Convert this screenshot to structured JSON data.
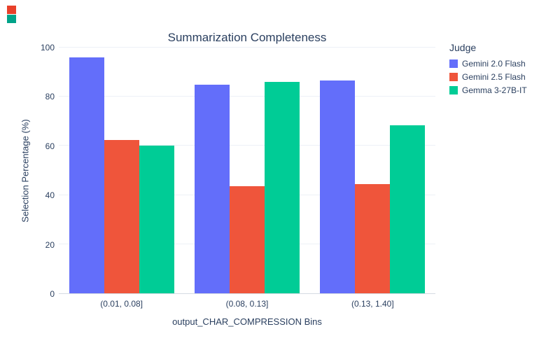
{
  "page": {
    "corner_swatches": [
      {
        "name": "red-swatch",
        "color": "#e8402a"
      },
      {
        "name": "teal-swatch",
        "color": "#00a389"
      }
    ]
  },
  "chart_data": {
    "type": "bar",
    "title": "Summarization Completeness",
    "xlabel": "output_CHAR_COMPRESSION Bins",
    "ylabel": "Selection Percentage (%)",
    "ylim": [
      0,
      100
    ],
    "yticks": [
      0,
      20,
      40,
      60,
      80,
      100
    ],
    "categories": [
      "(0.01, 0.08]",
      "(0.08, 0.13]",
      "(0.13, 1.40]"
    ],
    "series": [
      {
        "name": "Gemini 2.0 Flash",
        "color": "#636EFA",
        "values": [
          96,
          85,
          86.5
        ]
      },
      {
        "name": "Gemini 2.5 Flash",
        "color": "#EF553B",
        "values": [
          62.5,
          43.5,
          44.5
        ]
      },
      {
        "name": "Gemma 3-27B-IT",
        "color": "#00CC96",
        "values": [
          60,
          86,
          68.5
        ]
      }
    ],
    "legend": {
      "title": "Judge",
      "position": "right"
    },
    "grid": true,
    "text_color": "#2a3f5f",
    "grid_color": "#edf1f7"
  }
}
